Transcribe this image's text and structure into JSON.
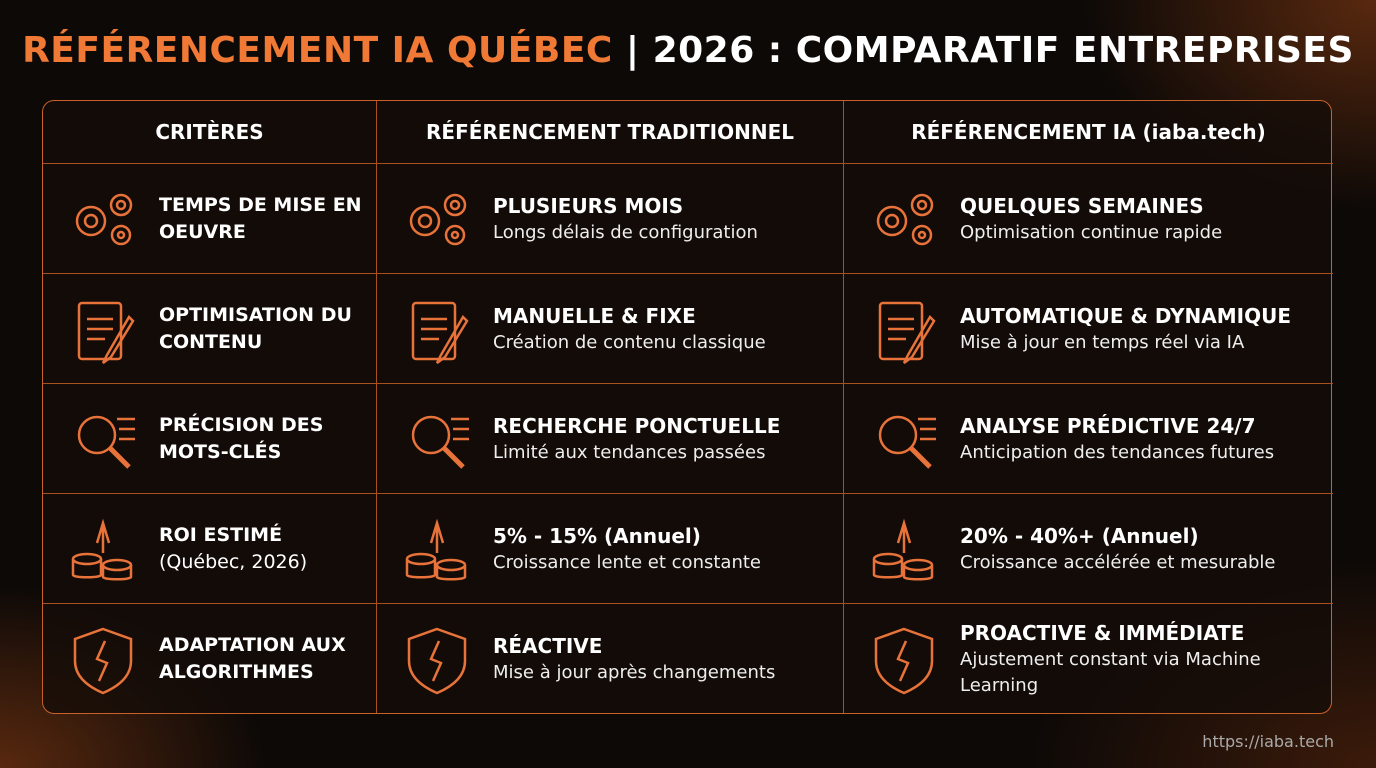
{
  "header": {
    "title_highlight": "RÉFÉRENCEMENT IA QUÉBEC",
    "title_rest": "| 2026 : COMPARATIF ENTREPRISES"
  },
  "table": {
    "columns": [
      "CRITÈRES",
      "RÉFÉRENCEMENT TRADITIONNEL",
      "RÉFÉRENCEMENT IA (iaba.tech)"
    ],
    "rows": [
      {
        "criterion": "TEMPS DE MISE EN OEUVRE",
        "traditional": {
          "title": "PLUSIEURS MOIS",
          "desc": "Longs délais de configuration"
        },
        "ia": {
          "title": "QUELQUES SEMAINES",
          "desc": "Optimisation continue rapide"
        }
      },
      {
        "criterion": "OPTIMISATION DU CONTENU",
        "traditional": {
          "title": "MANUELLE & FIXE",
          "desc": "Création de contenu classique"
        },
        "ia": {
          "title": "AUTOMATIQUE & DYNAMIQUE",
          "desc": "Mise à jour en temps réel via IA"
        }
      },
      {
        "criterion": "PRÉCISION DES MOTS-CLÉS",
        "traditional": {
          "title": "RECHERCHE PONCTUELLE",
          "desc": "Limité aux tendances passées"
        },
        "ia": {
          "title": "ANALYSE PRÉDICTIVE 24/7",
          "desc": "Anticipation des tendances futures"
        }
      },
      {
        "criterion": "ROI ESTIMÉ",
        "note": "(Québec, 2026)",
        "traditional": {
          "title": "5% - 15% (Annuel)",
          "desc": "Croissance lente et constante"
        },
        "ia": {
          "title": "20% - 40%+ (Annuel)",
          "desc": "Croissance accélérée et mesurable"
        }
      },
      {
        "criterion": "ADAPTATION AUX ALGORITHMES",
        "traditional": {
          "title": "RÉACTIVE",
          "desc": "Mise à jour après changements"
        },
        "ia": {
          "title": "PROACTIVE & IMMÉDIATE",
          "desc": "Ajustement constant via Machine Learning"
        }
      }
    ]
  },
  "footer": {
    "url": "https://iaba.tech"
  }
}
